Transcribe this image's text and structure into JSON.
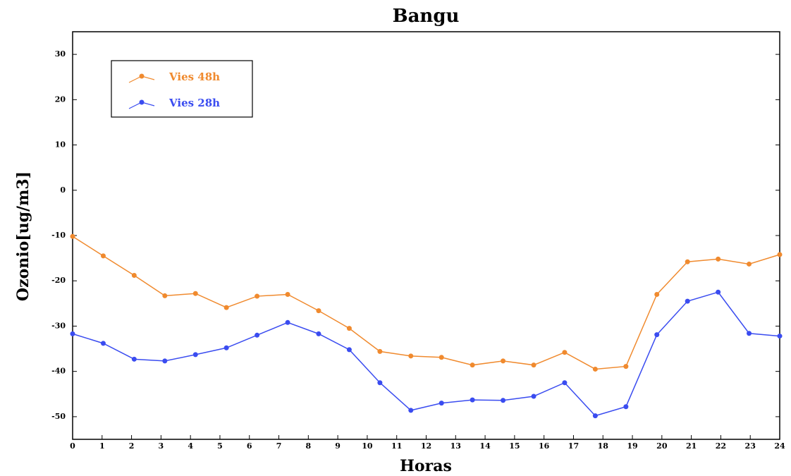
{
  "chart_data": {
    "type": "line",
    "title": "Bangu",
    "x_label": "Horas",
    "y_label": "Ozonio[ug/m3]",
    "x": [
      0,
      1.04,
      2.09,
      3.13,
      4.17,
      5.22,
      6.26,
      7.3,
      8.35,
      9.39,
      10.43,
      11.48,
      12.52,
      13.57,
      14.61,
      15.65,
      16.7,
      17.74,
      18.78,
      19.83,
      20.87,
      21.91,
      22.96,
      24
    ],
    "series": [
      {
        "name": "Vies 48h",
        "color": "#f08a2e",
        "values": [
          -10.2,
          -14.5,
          -18.8,
          -23.3,
          -22.8,
          -25.9,
          -23.4,
          -23,
          -26.6,
          -30.5,
          -35.6,
          -36.6,
          -36.9,
          -38.6,
          -37.7,
          -38.6,
          -35.8,
          -39.5,
          -38.9,
          -23,
          -15.8,
          -15.2,
          -16.3,
          -14.2
        ]
      },
      {
        "name": "Vies 28h",
        "color": "#3a4cf0",
        "values": [
          -31.7,
          -33.8,
          -37.3,
          -37.7,
          -36.3,
          -34.8,
          -32,
          -29.2,
          -31.7,
          -35.2,
          -42.5,
          -48.6,
          -47,
          -46.3,
          -46.4,
          -45.5,
          -42.5,
          -49.8,
          -47.8,
          -31.9,
          -24.5,
          -22.5,
          -31.6,
          -32.2
        ]
      }
    ],
    "xlim": [
      0,
      24
    ],
    "xticks": [
      0,
      1,
      2,
      3,
      4,
      5,
      6,
      7,
      8,
      9,
      10,
      11,
      12,
      13,
      14,
      15,
      16,
      17,
      18,
      19,
      20,
      21,
      22,
      23,
      24
    ],
    "ylim": [
      -55,
      35
    ],
    "yticks": [
      -50,
      -40,
      -30,
      -20,
      -10,
      0,
      10,
      20,
      30
    ]
  }
}
